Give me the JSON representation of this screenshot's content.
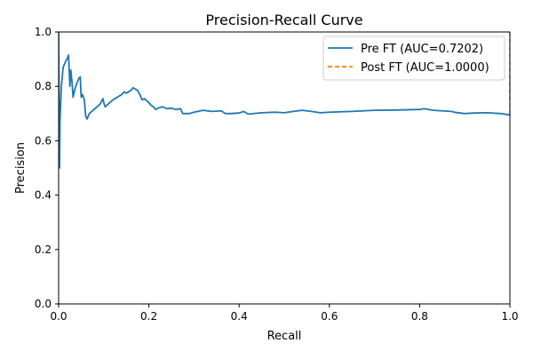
{
  "chart_data": {
    "type": "line",
    "title": "Precision-Recall Curve",
    "xlabel": "Recall",
    "ylabel": "Precision",
    "xlim": [
      0,
      1
    ],
    "ylim": [
      0,
      1
    ],
    "grid": false,
    "legend_position": "top-right",
    "x_ticks": [
      0.0,
      0.2,
      0.4,
      0.6,
      0.8,
      1.0
    ],
    "x_tick_labels": [
      "0.0",
      "0.2",
      "0.4",
      "0.6",
      "0.8",
      "1.0"
    ],
    "y_ticks": [
      0.0,
      0.2,
      0.4,
      0.6,
      0.8,
      1.0
    ],
    "y_tick_labels": [
      "0.0",
      "0.2",
      "0.4",
      "0.6",
      "0.8",
      "1.0"
    ],
    "series": [
      {
        "name": "Pre FT (AUC=0.7202)",
        "color": "#1f77b4",
        "line_style": "solid",
        "points": [
          [
            0.0,
            1.0
          ],
          [
            0.002,
            0.5
          ],
          [
            0.003,
            0.67
          ],
          [
            0.006,
            0.8
          ],
          [
            0.01,
            0.87
          ],
          [
            0.015,
            0.89
          ],
          [
            0.02,
            0.905
          ],
          [
            0.022,
            0.915
          ],
          [
            0.025,
            0.8
          ],
          [
            0.027,
            0.86
          ],
          [
            0.03,
            0.81
          ],
          [
            0.032,
            0.76
          ],
          [
            0.036,
            0.79
          ],
          [
            0.04,
            0.81
          ],
          [
            0.045,
            0.83
          ],
          [
            0.048,
            0.835
          ],
          [
            0.05,
            0.76
          ],
          [
            0.053,
            0.77
          ],
          [
            0.057,
            0.75
          ],
          [
            0.06,
            0.69
          ],
          [
            0.063,
            0.68
          ],
          [
            0.068,
            0.7
          ],
          [
            0.075,
            0.71
          ],
          [
            0.085,
            0.725
          ],
          [
            0.092,
            0.735
          ],
          [
            0.098,
            0.755
          ],
          [
            0.1,
            0.74
          ],
          [
            0.103,
            0.725
          ],
          [
            0.11,
            0.735
          ],
          [
            0.12,
            0.75
          ],
          [
            0.13,
            0.76
          ],
          [
            0.14,
            0.77
          ],
          [
            0.145,
            0.78
          ],
          [
            0.15,
            0.775
          ],
          [
            0.155,
            0.78
          ],
          [
            0.16,
            0.785
          ],
          [
            0.165,
            0.795
          ],
          [
            0.17,
            0.79
          ],
          [
            0.175,
            0.785
          ],
          [
            0.18,
            0.77
          ],
          [
            0.185,
            0.75
          ],
          [
            0.19,
            0.755
          ],
          [
            0.2,
            0.74
          ],
          [
            0.205,
            0.73
          ],
          [
            0.21,
            0.725
          ],
          [
            0.215,
            0.715
          ],
          [
            0.22,
            0.72
          ],
          [
            0.23,
            0.725
          ],
          [
            0.24,
            0.718
          ],
          [
            0.25,
            0.72
          ],
          [
            0.26,
            0.715
          ],
          [
            0.27,
            0.718
          ],
          [
            0.275,
            0.7
          ],
          [
            0.28,
            0.7
          ],
          [
            0.29,
            0.7
          ],
          [
            0.3,
            0.705
          ],
          [
            0.32,
            0.712
          ],
          [
            0.34,
            0.708
          ],
          [
            0.36,
            0.71
          ],
          [
            0.37,
            0.7
          ],
          [
            0.38,
            0.7
          ],
          [
            0.4,
            0.702
          ],
          [
            0.41,
            0.708
          ],
          [
            0.42,
            0.698
          ],
          [
            0.45,
            0.703
          ],
          [
            0.48,
            0.705
          ],
          [
            0.5,
            0.703
          ],
          [
            0.52,
            0.708
          ],
          [
            0.54,
            0.712
          ],
          [
            0.56,
            0.708
          ],
          [
            0.58,
            0.703
          ],
          [
            0.6,
            0.705
          ],
          [
            0.65,
            0.708
          ],
          [
            0.7,
            0.712
          ],
          [
            0.75,
            0.713
          ],
          [
            0.8,
            0.715
          ],
          [
            0.81,
            0.718
          ],
          [
            0.83,
            0.712
          ],
          [
            0.85,
            0.71
          ],
          [
            0.87,
            0.708
          ],
          [
            0.88,
            0.704
          ],
          [
            0.9,
            0.7
          ],
          [
            0.92,
            0.702
          ],
          [
            0.95,
            0.703
          ],
          [
            0.98,
            0.7
          ],
          [
            1.0,
            0.695
          ]
        ]
      },
      {
        "name": "Post FT (AUC=1.0000)",
        "color": "#ff7f0e",
        "line_style": "dashed",
        "points": [
          [
            1.0,
            1.0
          ],
          [
            1.0,
            0.693
          ]
        ]
      }
    ]
  }
}
